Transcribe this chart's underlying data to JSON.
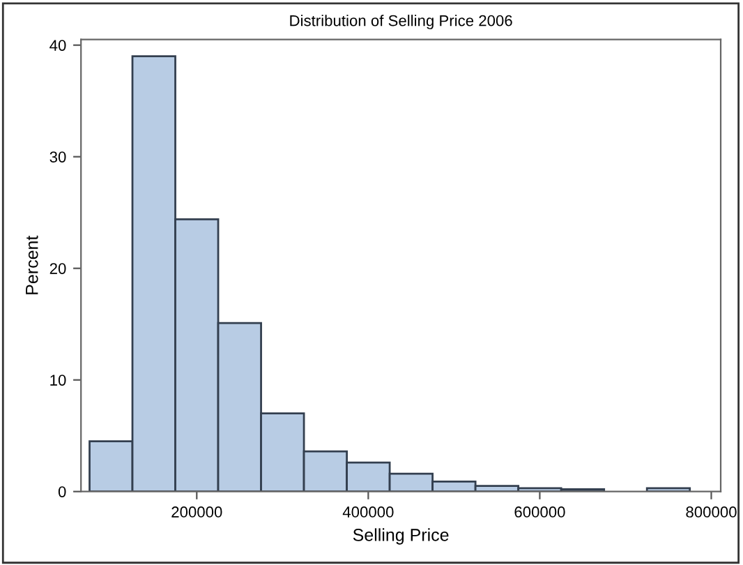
{
  "chart_data": {
    "type": "histogram",
    "title": "Distribution of Selling Price 2006",
    "xlabel": "Selling Price",
    "ylabel": "Percent",
    "bins": [
      75000,
      125000,
      175000,
      225000,
      275000,
      325000,
      375000,
      425000,
      475000,
      525000,
      575000,
      625000,
      675000,
      725000,
      775000
    ],
    "values": [
      4.5,
      39,
      24.4,
      15.1,
      7.0,
      3.6,
      2.6,
      1.6,
      0.9,
      0.5,
      0.3,
      0.2,
      0,
      0.3
    ],
    "color": "#b8cce4",
    "xlim": [
      65000,
      811000
    ],
    "xticks": [
      200000,
      400000,
      600000,
      800000
    ],
    "ylim": [
      0,
      40.5
    ],
    "yticks": [
      0,
      10,
      20,
      30,
      40
    ],
    "grid": false
  }
}
